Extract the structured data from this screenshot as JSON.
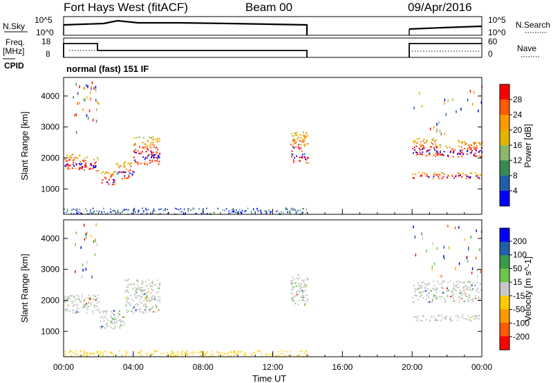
{
  "header": {
    "station": "Fort Hays West (fitACF)",
    "beam": "Beam 00",
    "date": "09/Apr/2016"
  },
  "small_panels": {
    "nsky_label": "N.Sky",
    "nsearch_label": "N.Search",
    "nsky_ticks": [
      "10^5",
      "10^0"
    ],
    "nsearch_ticks": [
      "10^5",
      "10^0"
    ],
    "freq_label_top": "Freq.",
    "freq_label_unit": "[MHz]",
    "freq_ticks": [
      "18",
      "8"
    ],
    "nave_label": "Nave",
    "nave_ticks": [
      "60",
      "0"
    ],
    "cpid_label": "CPID",
    "cpid_text": "normal (fast) 151 IF"
  },
  "colors": {
    "power": [
      "#0000ff",
      "#1f5fa8",
      "#3a8a55",
      "#8ab86a",
      "#e2b400",
      "#ff9a00",
      "#ff5a00",
      "#ff0000"
    ],
    "velocity": [
      "#ff0000",
      "#ff5a00",
      "#ff9a00",
      "#ffcc00",
      "#c8c8c8",
      "#6fc54a",
      "#3a9b4a",
      "#1f5fa8",
      "#0000ff"
    ]
  },
  "chart_data": [
    {
      "type": "heatmap",
      "name": "power-panel",
      "ylabel": "Slant Range [km]",
      "colorbar_label": "Power [dB]",
      "colorbar_ticks": [
        "28",
        "24",
        "20",
        "16",
        "12",
        "8",
        "4"
      ],
      "x_ticks": [
        "00:00",
        "04:00",
        "08:00",
        "12:00",
        "16:00",
        "20:00",
        "00:00"
      ],
      "xlim_hours": [
        0,
        24
      ],
      "ylim_km": [
        180,
        4600
      ],
      "y_ticks": [
        "4000",
        "3000",
        "2000",
        "1000"
      ],
      "scatter_bands": [
        {
          "t0": 0.0,
          "t1": 1.0,
          "r0": 1650,
          "r1": 2150
        },
        {
          "t0": 1.0,
          "t1": 2.0,
          "r0": 1600,
          "r1": 2050
        },
        {
          "t0": 2.0,
          "t1": 3.0,
          "r0": 1150,
          "r1": 1600
        },
        {
          "t0": 3.0,
          "t1": 4.0,
          "r0": 1350,
          "r1": 1900
        },
        {
          "t0": 4.0,
          "t1": 5.5,
          "r0": 1800,
          "r1": 2700
        },
        {
          "t0": 13.0,
          "t1": 14.0,
          "r0": 1850,
          "r1": 2850
        },
        {
          "t0": 20.0,
          "t1": 21.5,
          "r0": 2050,
          "r1": 2650
        },
        {
          "t0": 21.5,
          "t1": 22.5,
          "r0": 2050,
          "r1": 2450
        },
        {
          "t0": 22.5,
          "t1": 24.0,
          "r0": 2050,
          "r1": 2600
        },
        {
          "t0": 20.0,
          "t1": 24.0,
          "r0": 1350,
          "r1": 1550
        }
      ]
    },
    {
      "type": "heatmap",
      "name": "velocity-panel",
      "ylabel": "Slant Range [km]",
      "colorbar_label": "Velocity [m s^-1]",
      "colorbar_ticks": [
        "200",
        "100",
        "50",
        "15",
        "-15",
        "-50",
        "-100",
        "-200"
      ],
      "x_ticks": [
        "00:00",
        "04:00",
        "08:00",
        "12:00",
        "16:00",
        "20:00",
        "00:00"
      ],
      "xlabel": "Time UT",
      "xlim_hours": [
        0,
        24
      ],
      "ylim_km": [
        180,
        4600
      ],
      "y_ticks": [
        "4000",
        "3000",
        "2000",
        "1000"
      ],
      "scatter_bands": [
        {
          "t0": 0.0,
          "t1": 2.0,
          "r0": 1600,
          "r1": 2200
        },
        {
          "t0": 2.0,
          "t1": 3.5,
          "r0": 1100,
          "r1": 1700
        },
        {
          "t0": 3.5,
          "t1": 5.5,
          "r0": 1600,
          "r1": 2700
        },
        {
          "t0": 13.0,
          "t1": 14.0,
          "r0": 1850,
          "r1": 2850
        },
        {
          "t0": 20.0,
          "t1": 24.0,
          "r0": 1950,
          "r1": 2650
        },
        {
          "t0": 20.0,
          "t1": 24.0,
          "r0": 1350,
          "r1": 1550
        }
      ]
    }
  ]
}
